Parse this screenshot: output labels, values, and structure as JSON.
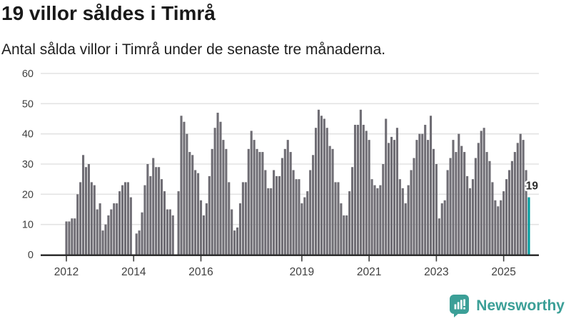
{
  "header": {
    "title": "19 villor såldes i Timrå",
    "subtitle": "Antal sålda villor i Timrå under de senaste tre månaderna."
  },
  "chart_data": {
    "type": "bar",
    "title": "19 villor såldes i Timrå",
    "subtitle": "Antal sålda villor i Timrå under de senaste tre månaderna.",
    "xlabel": "",
    "ylabel": "",
    "x_start": "2012-01",
    "x_end": "2025-10",
    "ylim": [
      0,
      60
    ],
    "yticks": [
      0,
      10,
      20,
      30,
      40,
      50,
      60
    ],
    "grid": true,
    "values": [
      11,
      11,
      12,
      12,
      20,
      24,
      33,
      29,
      30,
      24,
      23,
      15,
      17,
      8,
      10,
      13,
      15,
      17,
      17,
      21,
      23,
      24,
      24,
      19,
      0,
      7,
      8,
      14,
      23,
      30,
      26,
      32,
      29,
      29,
      25,
      21,
      15,
      15,
      13,
      0,
      21,
      46,
      44,
      40,
      34,
      33,
      28,
      27,
      18,
      13,
      17,
      26,
      35,
      42,
      47,
      44,
      38,
      35,
      24,
      15,
      8,
      9,
      17,
      24,
      24,
      35,
      41,
      38,
      35,
      34,
      34,
      28,
      22,
      22,
      28,
      26,
      26,
      32,
      35,
      38,
      34,
      28,
      25,
      25,
      17,
      19,
      21,
      28,
      33,
      42,
      48,
      46,
      45,
      42,
      36,
      35,
      24,
      24,
      17,
      13,
      13,
      21,
      29,
      43,
      43,
      48,
      43,
      41,
      38,
      25,
      23,
      22,
      23,
      30,
      45,
      37,
      39,
      38,
      42,
      25,
      22,
      17,
      23,
      28,
      32,
      38,
      40,
      40,
      43,
      38,
      46,
      35,
      30,
      12,
      17,
      18,
      28,
      32,
      38,
      34,
      40,
      36,
      34,
      26,
      22,
      25,
      32,
      37,
      41,
      42,
      34,
      31,
      24,
      18,
      16,
      18,
      21,
      25,
      28,
      31,
      34,
      37,
      40,
      38,
      28,
      19
    ],
    "year_labels": [
      {
        "label": "2012",
        "month_index": 0
      },
      {
        "label": "2014",
        "month_index": 24
      },
      {
        "label": "2016",
        "month_index": 48
      },
      {
        "label": "2019",
        "month_index": 84
      },
      {
        "label": "2021",
        "month_index": 108
      },
      {
        "label": "2023",
        "month_index": 132
      },
      {
        "label": "2025",
        "month_index": 156
      }
    ],
    "annotation": {
      "text": "19",
      "value": 19
    },
    "highlight_last": true,
    "legend": "none",
    "colors": {
      "bar": "#6F6D74",
      "highlight": "#009B9D",
      "grid": "#E3E3E3",
      "axis": "#2E2E2E",
      "tick_text": "#3F3F3F",
      "annotation_text": "#2B2B2B"
    }
  },
  "footer": {
    "brand": "Newsworthy",
    "brand_color": "#3B9F97",
    "logo_icon": "bar-chart-speech-bubble-icon"
  }
}
